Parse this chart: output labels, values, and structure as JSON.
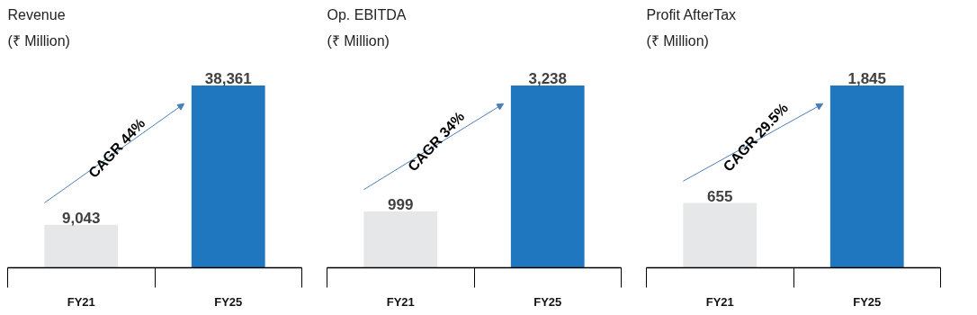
{
  "chart_data": [
    {
      "type": "bar",
      "title": "Revenue",
      "subtitle": "(₹ Million)",
      "categories": [
        "FY21",
        "FY25"
      ],
      "values": [
        9043,
        38361
      ],
      "colors": [
        "#e6e7e8",
        "#1f77c0"
      ],
      "data_labels": true,
      "value_labels": [
        "9,043",
        "38,361"
      ],
      "annotations": [
        "CAGR 44%"
      ],
      "grid": false,
      "tick_labels": "x"
    },
    {
      "type": "bar",
      "title": "Op. EBITDA",
      "subtitle": "(₹ Million)",
      "categories": [
        "FY21",
        "FY25"
      ],
      "values": [
        999,
        3238
      ],
      "colors": [
        "#e6e7e8",
        "#1f77c0"
      ],
      "data_labels": true,
      "value_labels": [
        "999",
        "3,238"
      ],
      "annotations": [
        "CAGR 34%"
      ],
      "grid": false,
      "tick_labels": "x"
    },
    {
      "type": "bar",
      "title": "Profit AfterTax",
      "subtitle": "(₹ Million)",
      "categories": [
        "FY21",
        "FY25"
      ],
      "values": [
        655,
        1845
      ],
      "colors": [
        "#e6e7e8",
        "#1f77c0"
      ],
      "data_labels": true,
      "value_labels": [
        "655",
        "1,845"
      ],
      "annotations": [
        "CAGR 29.5%"
      ],
      "grid": false,
      "tick_labels": "x"
    }
  ]
}
